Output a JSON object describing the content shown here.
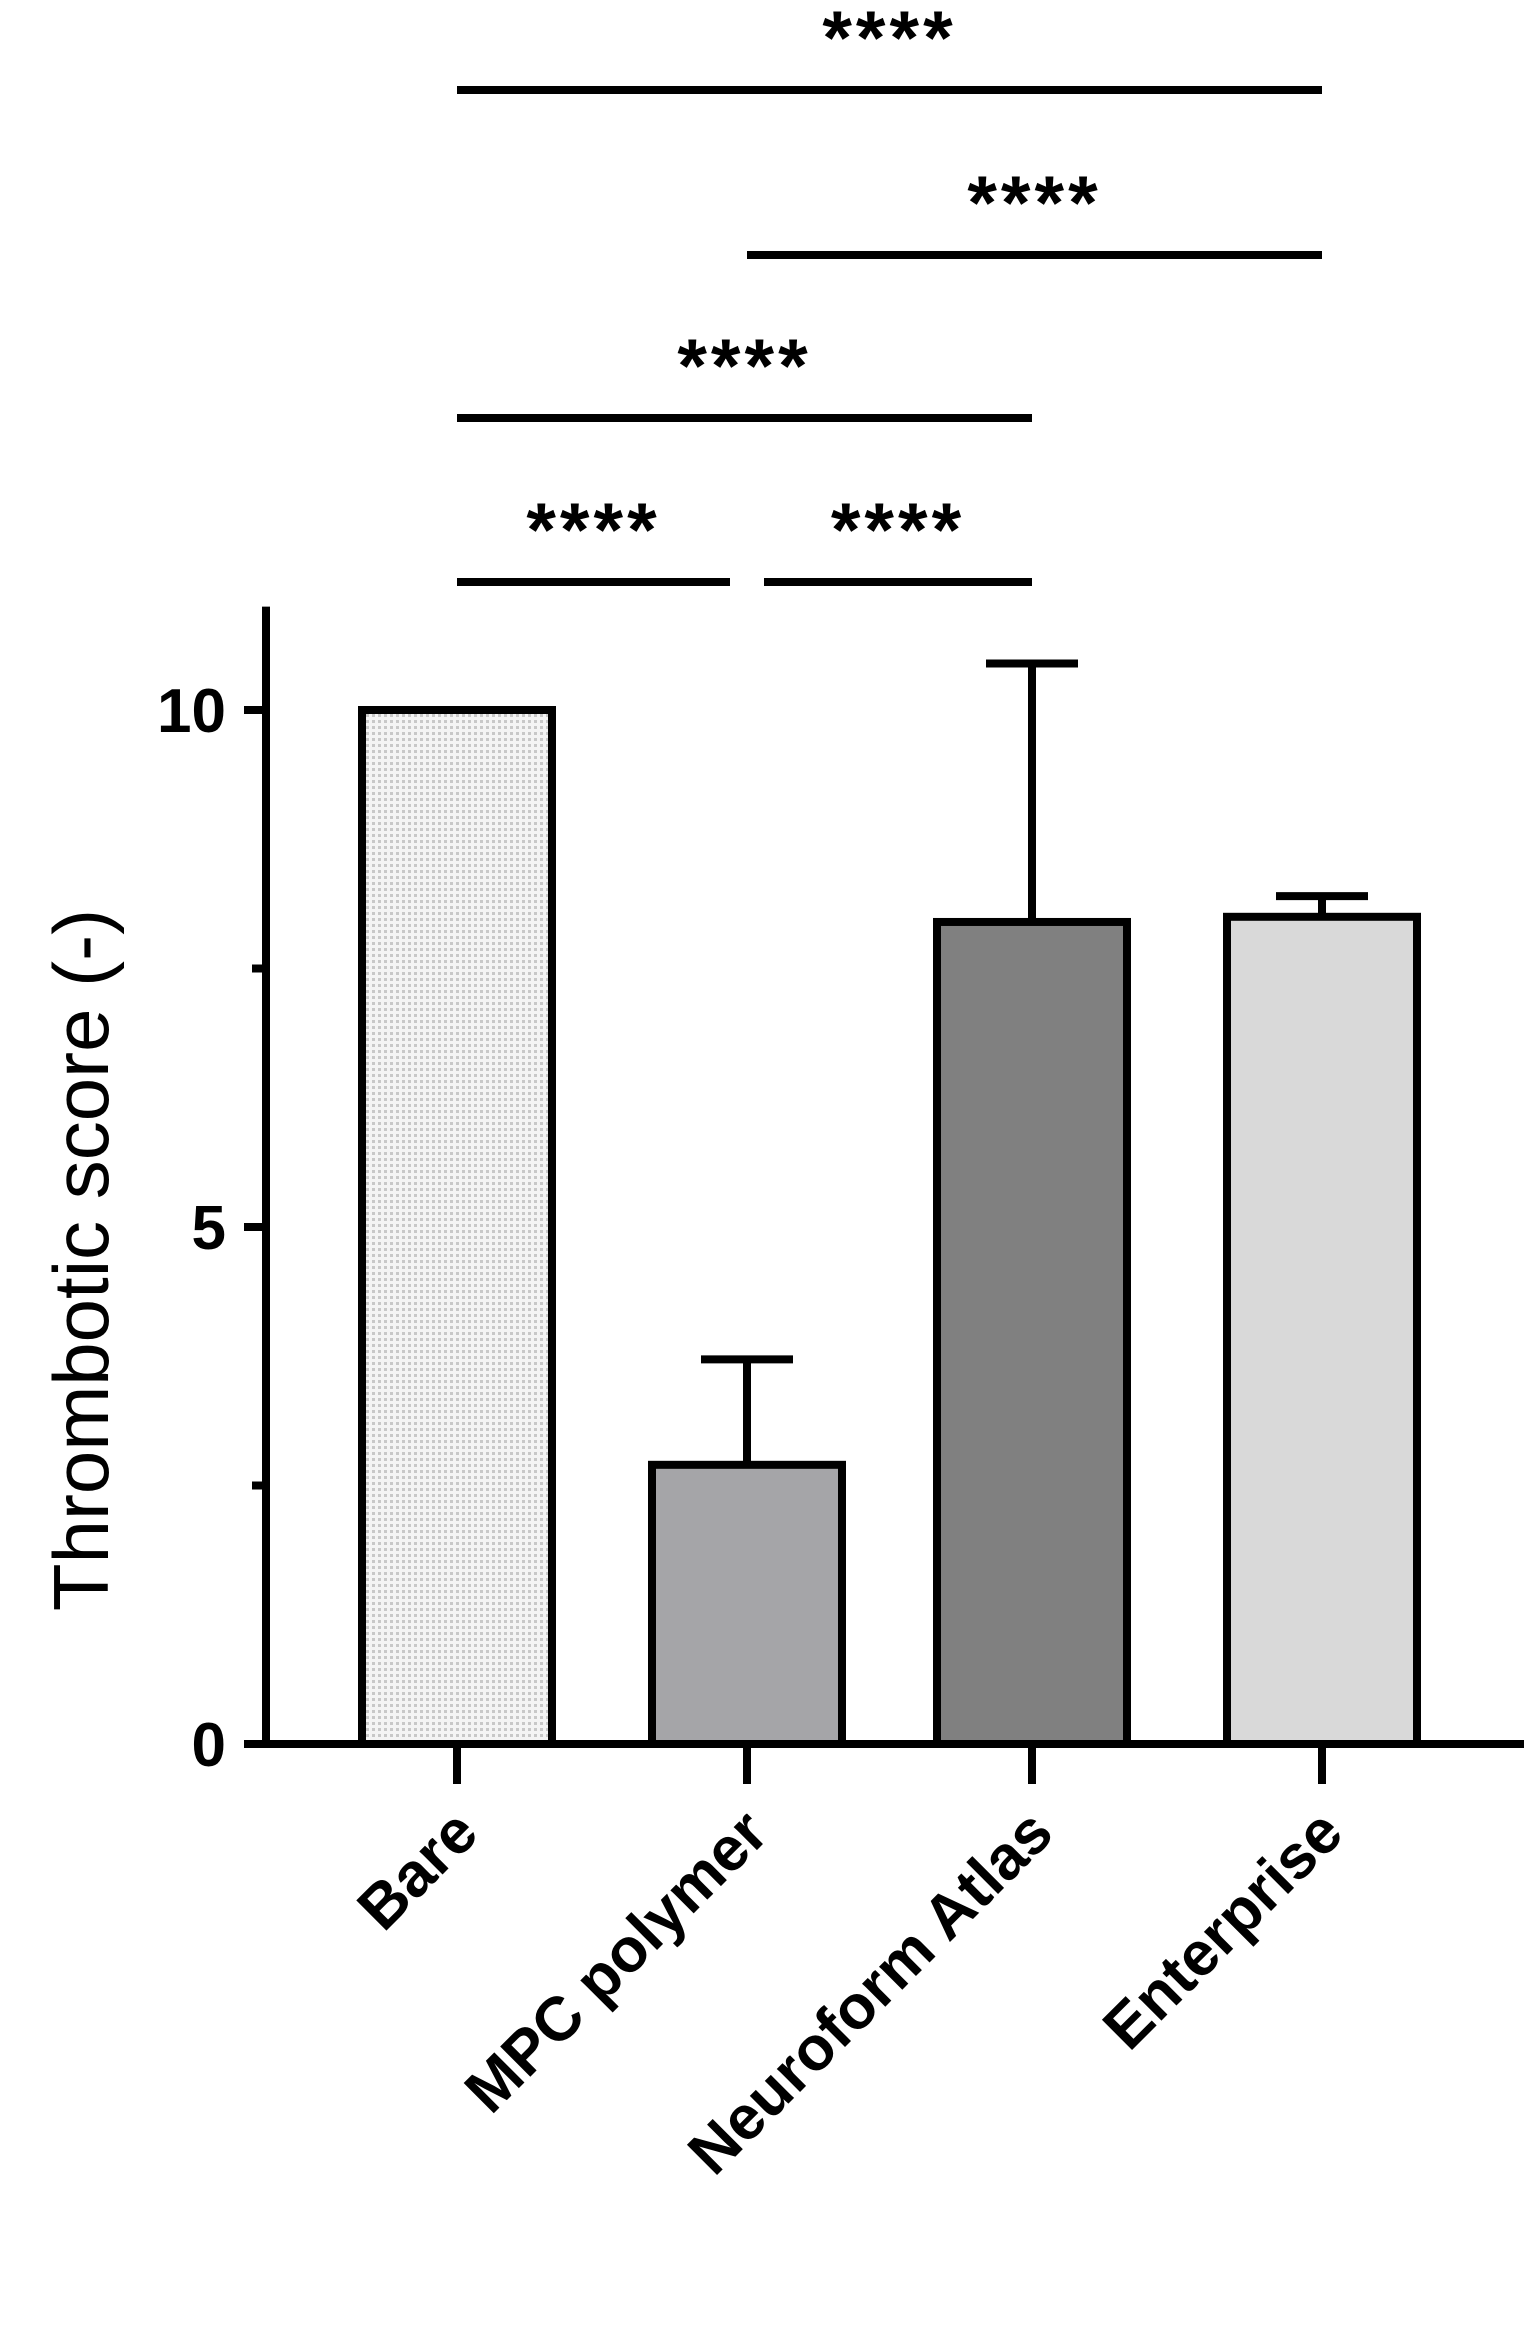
{
  "chart_data": {
    "type": "bar",
    "title": "",
    "xlabel": "",
    "ylabel": "Thrombotic score (-)",
    "ylim": [
      0,
      11
    ],
    "yticks": [
      {
        "value": 0,
        "label": "0"
      },
      {
        "value": 5,
        "label": "5"
      },
      {
        "value": 10,
        "label": "10"
      }
    ],
    "minor_yticks": [
      2.5,
      7.5
    ],
    "categories": [
      "Bare",
      "MPC polymer",
      "Neuroform Atlas",
      "Enterprise"
    ],
    "values": [
      10.0,
      2.7,
      7.95,
      8.0
    ],
    "errors": [
      0.0,
      1.02,
      2.5,
      0.2
    ],
    "bar_styles": [
      {
        "fill": "#f0f0f0",
        "pattern": "dotted"
      },
      {
        "fill": "#a5a5a8",
        "pattern": "none"
      },
      {
        "fill": "#808080",
        "pattern": "none"
      },
      {
        "fill": "#d9d9d9",
        "pattern": "none"
      }
    ],
    "significance": [
      {
        "from": 0,
        "to": 3,
        "label": "****"
      },
      {
        "from": 1,
        "to": 3,
        "label": "****"
      },
      {
        "from": 0,
        "to": 2,
        "label": "****"
      },
      {
        "from": 0,
        "to": 1,
        "label": "****"
      },
      {
        "from": 1,
        "to": 2,
        "label": "****"
      }
    ],
    "grid": false,
    "legend": "none"
  }
}
